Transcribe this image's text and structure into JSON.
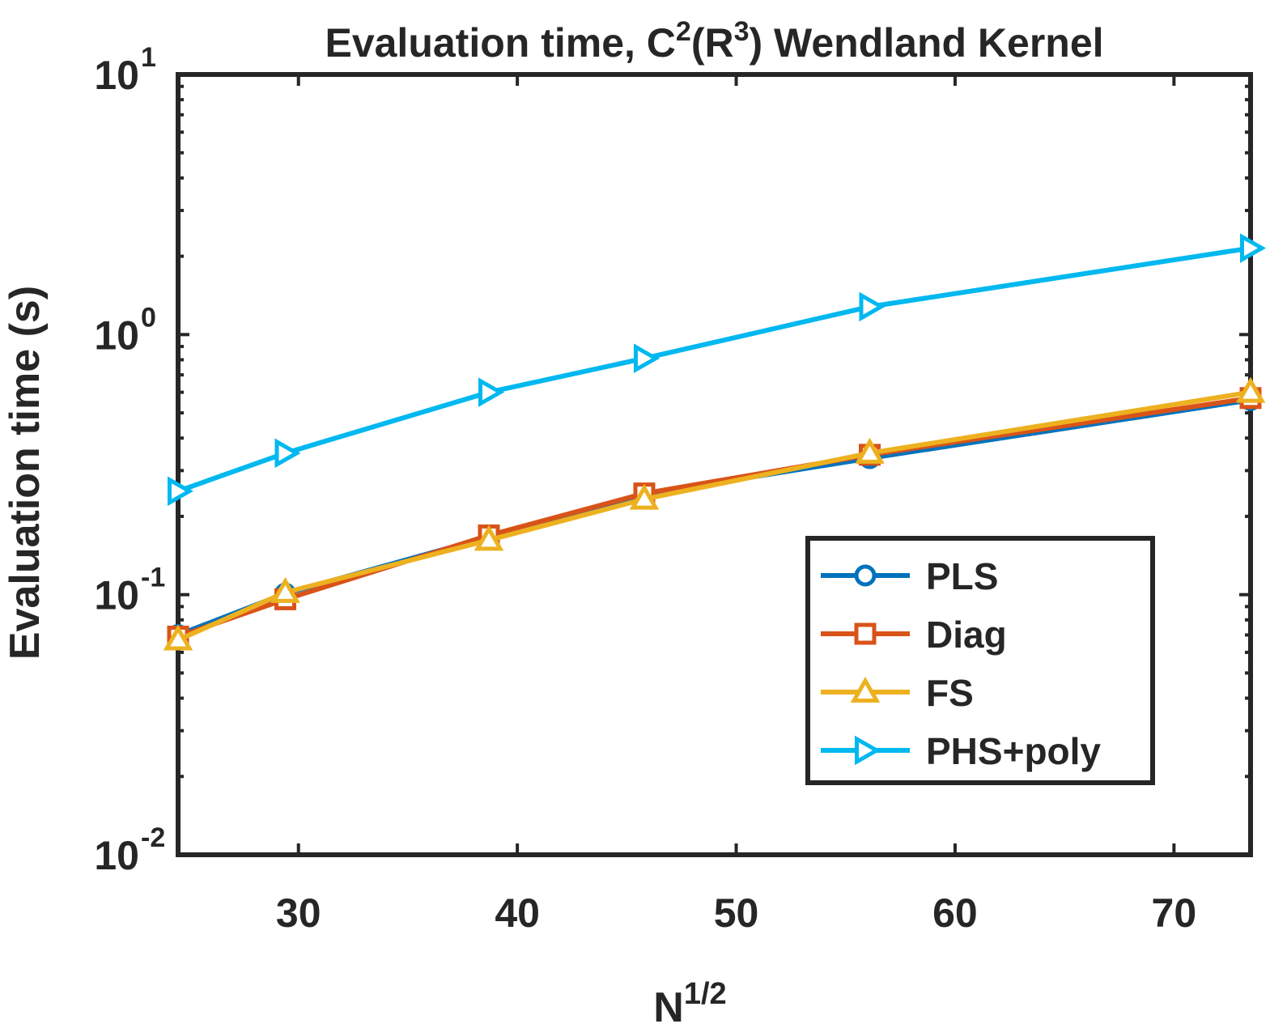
{
  "chart_data": {
    "type": "line",
    "title": {
      "parts": [
        {
          "text": "Evaluation time, C"
        },
        {
          "text": "2",
          "sup": true
        },
        {
          "text": "(R"
        },
        {
          "text": "3",
          "sup": true
        },
        {
          "text": ") Wendland Kernel"
        }
      ]
    },
    "xlabel": {
      "base": "N",
      "sup": "1/2"
    },
    "ylabel": "Evaluation time (s)",
    "xscale": "linear",
    "yscale": "log",
    "xlim": [
      24.5,
      73.5
    ],
    "ylim": [
      0.01,
      10
    ],
    "xticks": [
      30,
      40,
      50,
      60,
      70
    ],
    "yticks": [
      {
        "value": 0.01,
        "base": "10",
        "exp": "-2"
      },
      {
        "value": 0.1,
        "base": "10",
        "exp": "-1"
      },
      {
        "value": 1,
        "base": "10",
        "exp": "0"
      },
      {
        "value": 10,
        "base": "10",
        "exp": "1"
      }
    ],
    "x": [
      24.5,
      29.4,
      38.7,
      45.8,
      56.1,
      73.5
    ],
    "series": [
      {
        "name": "PLS",
        "color": "#0072BD",
        "marker": "circle",
        "values": [
          0.07,
          0.101,
          0.167,
          0.243,
          0.335,
          0.56
        ]
      },
      {
        "name": "Diag",
        "color": "#D95319",
        "marker": "square",
        "values": [
          0.069,
          0.096,
          0.169,
          0.245,
          0.345,
          0.57
        ]
      },
      {
        "name": "FS",
        "color": "#EDB120",
        "marker": "triangle-up",
        "values": [
          0.067,
          0.102,
          0.162,
          0.233,
          0.35,
          0.6
        ]
      },
      {
        "name": "PHS+poly",
        "color": "#00B8F0",
        "marker": "triangle-right",
        "values": [
          0.25,
          0.35,
          0.6,
          0.81,
          1.28,
          2.15
        ]
      }
    ],
    "legend_position": "bottom-right",
    "grid": false
  }
}
